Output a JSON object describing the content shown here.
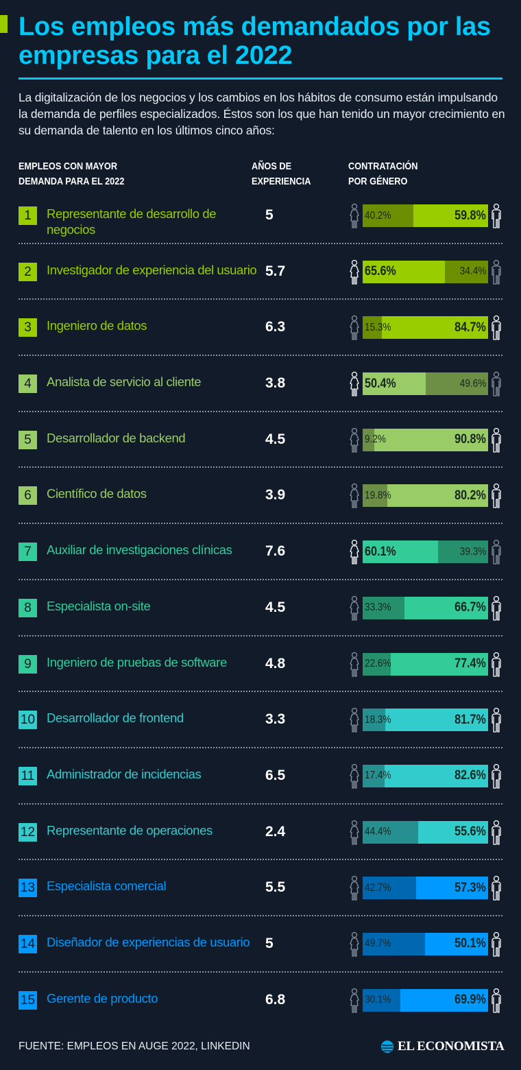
{
  "title": "Los empleos más demandados por las empresas para el 2022",
  "intro": "La digitalización de los negocios y los cambios en los hábitos de consumo están impulsando la demanda de perfiles especializados. Éstos son los que han tenido un mayor crecimiento en su demanda de talento en los últimos cinco años:",
  "headers": {
    "job": "EMPLEOS CON MAYOR DEMANDA PARA EL 2022",
    "experience": "AÑOS DE EXPERIENCIA",
    "gender": "CONTRATACIÓN POR GÉNERO"
  },
  "colors": {
    "title": "#00c8f8",
    "background": "#111b29",
    "accent": "#9acd00"
  },
  "groups": [
    {
      "bright": "#9acd00",
      "dark": "#6b8f00"
    },
    {
      "bright": "#99cc66",
      "dark": "#6c8f45"
    },
    {
      "bright": "#33cc99",
      "dark": "#26906c"
    },
    {
      "bright": "#33cccc",
      "dark": "#268f8f"
    },
    {
      "bright": "#0099ff",
      "dark": "#0068b0"
    }
  ],
  "chart_data": {
    "type": "bar",
    "stacked": true,
    "categories": [
      "Representante de desarrollo de negocios",
      "Investigador de experiencia del usuario",
      "Ingeniero de datos",
      "Analista de servicio al cliente",
      "Desarrollador de backend",
      "Científico de datos",
      "Auxiliar de investigaciones clínicas",
      "Especialista on-site",
      "Ingeniero de pruebas de software",
      "Desarrollador de frontend",
      "Administrador de incidencias",
      "Representante de operaciones",
      "Especialista comercial",
      "Diseñador de experiencias de usuario",
      "Gerente de producto"
    ],
    "experience_years": [
      "5",
      "5.7",
      "6.3",
      "3.8",
      "4.5",
      "3.9",
      "7.6",
      "4.5",
      "4.8",
      "3.3",
      "6.5",
      "2.4",
      "5.5",
      "5",
      "6.8"
    ],
    "series": [
      {
        "icon": "woman-icon",
        "values": [
          40.2,
          65.6,
          15.3,
          50.4,
          9.2,
          19.8,
          60.1,
          33.3,
          22.6,
          18.3,
          17.4,
          44.4,
          42.7,
          49.7,
          30.1
        ]
      },
      {
        "icon": "man-icon",
        "values": [
          59.8,
          34.4,
          84.7,
          49.6,
          90.8,
          80.2,
          39.3,
          66.7,
          77.4,
          81.7,
          82.6,
          55.6,
          57.3,
          50.1,
          69.9
        ]
      }
    ],
    "xlim": [
      0,
      100
    ],
    "unit": "%"
  },
  "rows": [],
  "footer": {
    "source": "FUENTE: EMPLEOS EN AUGE 2022, LINKEDIN",
    "logo": "EL ECONOMISTA"
  }
}
